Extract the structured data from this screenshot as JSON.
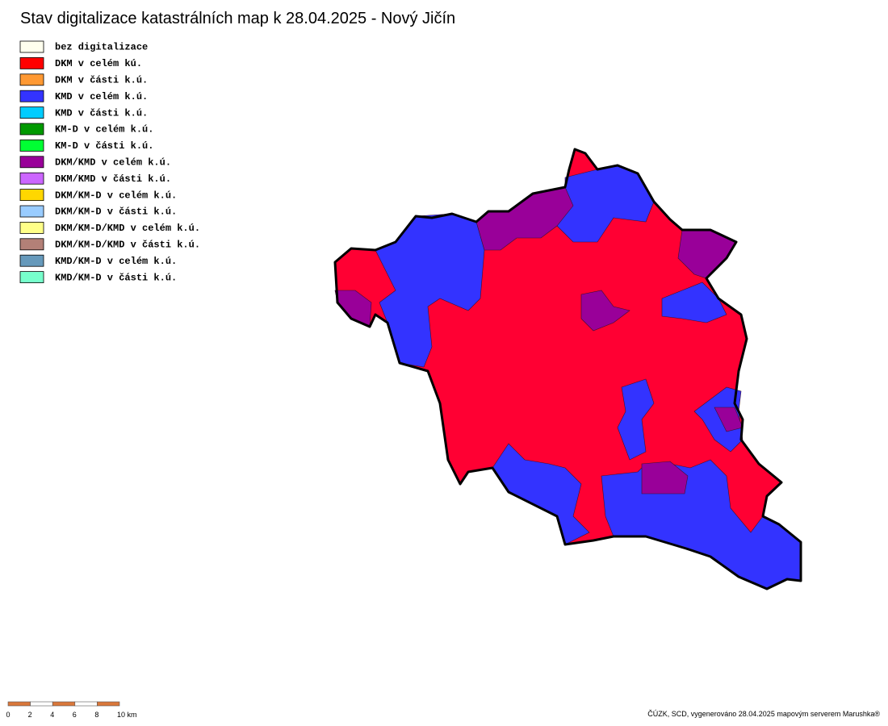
{
  "header": {
    "title": "Stav digitalizace katastrálních map k 28.04.2025 - Nový Jičín"
  },
  "legend": [
    {
      "label": "bez digitalizace",
      "color": "#ffffee"
    },
    {
      "label": "DKM v celém kú.",
      "color": "#ff0000"
    },
    {
      "label": "DKM v části k.ú.",
      "color": "#ff9933"
    },
    {
      "label": "KMD v celém k.ú.",
      "color": "#3333ff"
    },
    {
      "label": "KMD v části k.ú.",
      "color": "#00ccff"
    },
    {
      "label": "KM-D v celém k.ú.",
      "color": "#009900"
    },
    {
      "label": "KM-D v části k.ú.",
      "color": "#00ff33"
    },
    {
      "label": "DKM/KMD v celém k.ú.",
      "color": "#990099"
    },
    {
      "label": "DKM/KMD v části k.ú.",
      "color": "#cc66ff"
    },
    {
      "label": "DKM/KM-D v celém k.ú.",
      "color": "#ffd700"
    },
    {
      "label": "DKM/KM-D v části k.ú.",
      "color": "#99ccff"
    },
    {
      "label": "DKM/KM-D/KMD v celém k.ú.",
      "color": "#ffff88"
    },
    {
      "label": "DKM/KM-D/KMD v části k.ú.",
      "color": "#b38077"
    },
    {
      "label": "KMD/KM-D v celém k.ú.",
      "color": "#6699bb"
    },
    {
      "label": "KMD/KM-D v části k.ú.",
      "color": "#77ffcc"
    }
  ],
  "scale_bar": {
    "labels": [
      "0",
      "2",
      "4",
      "6",
      "8",
      "10 km"
    ]
  },
  "footer": {
    "credit": "ČÚZK, SCD, vygenerováno 28.04.2025 mapovým serverem Marushka®"
  }
}
